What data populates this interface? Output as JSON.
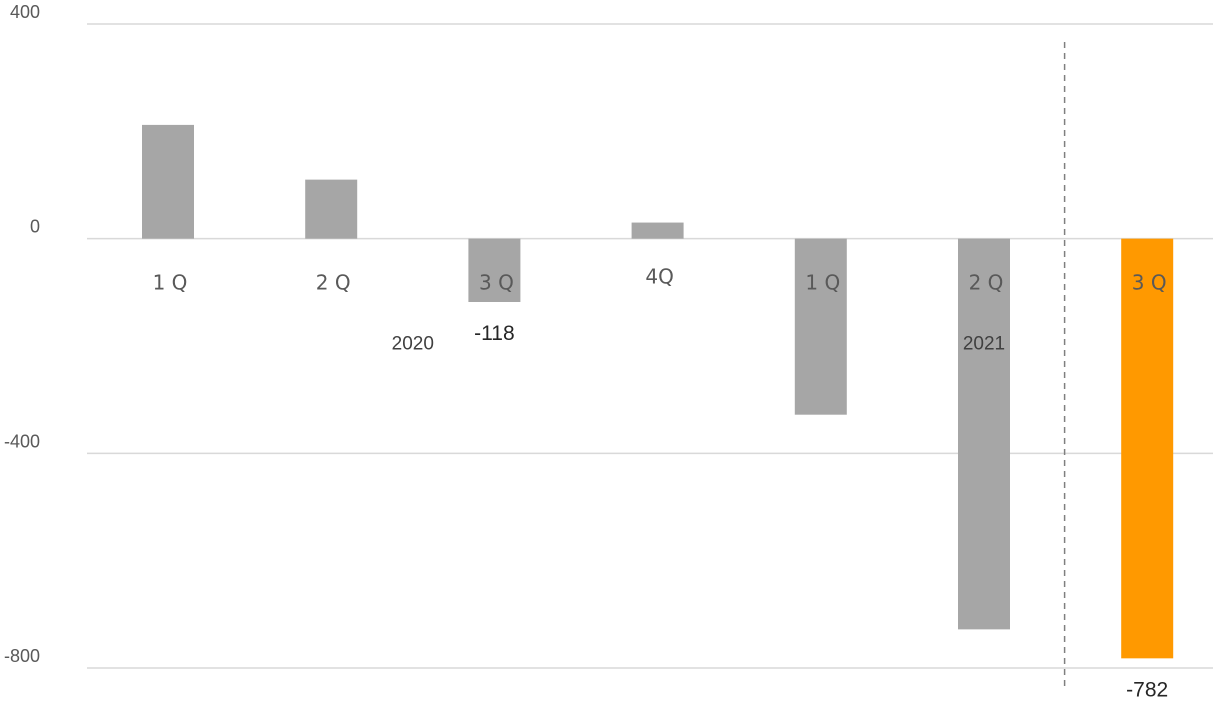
{
  "chart_data": {
    "type": "bar",
    "categories": [
      "1 Q",
      "2 Q",
      "3 Q",
      "4Q",
      "1 Q",
      "2 Q",
      "3 Q"
    ],
    "groups": [
      {
        "label": "2020",
        "categories": [
          "1 Q",
          "2 Q",
          "3 Q",
          "4Q"
        ]
      },
      {
        "label": "2021",
        "categories": [
          "1 Q",
          "2 Q",
          "3 Q"
        ]
      }
    ],
    "values": [
      212,
      110,
      -118,
      30,
      -328,
      -728,
      -782
    ],
    "data_labels": [
      "",
      "",
      "-118",
      "",
      "",
      "",
      "-782"
    ],
    "bar_colors": [
      "#A6A6A6",
      "#A6A6A6",
      "#A6A6A6",
      "#A6A6A6",
      "#A6A6A6",
      "#A6A6A6",
      "#FF9900"
    ],
    "yticks": [
      "400",
      "0",
      "-400",
      "-800"
    ],
    "ytick_values": [
      400,
      0,
      -400,
      -800
    ],
    "ylim": [
      -800,
      400
    ],
    "grid": true,
    "separator_line": "dashed vertical line before last bar",
    "gridline_color": "#D9D9D9",
    "title": "",
    "xlabel": "",
    "ylabel": ""
  }
}
